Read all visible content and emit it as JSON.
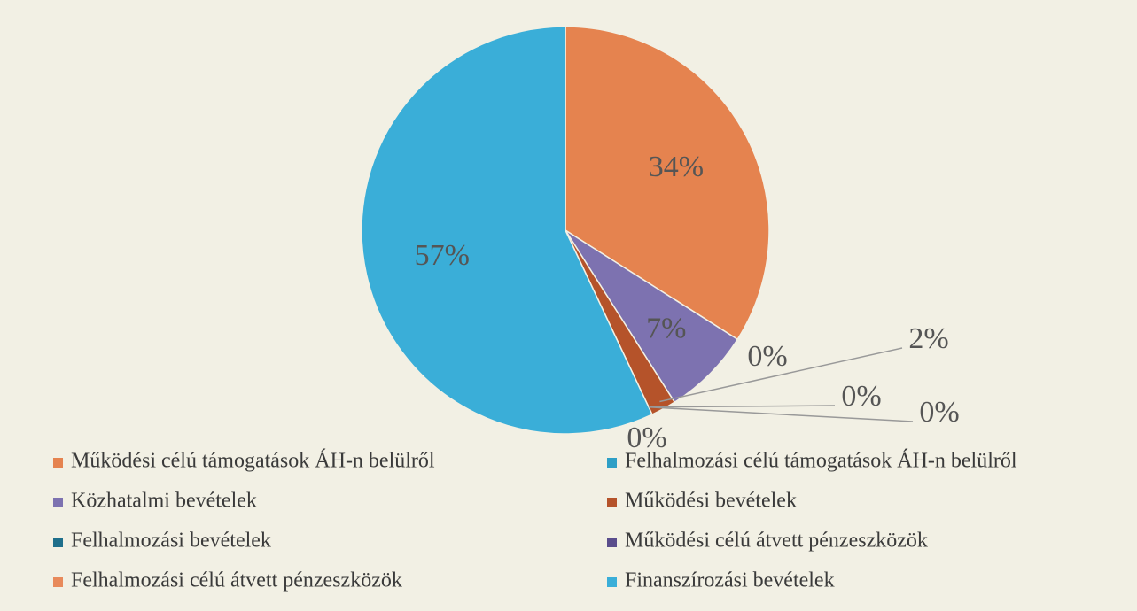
{
  "chart_data": {
    "type": "pie",
    "categories": [
      "Működési célú támogatások ÁH-n belülről",
      "Felhalmozási célú támogatások ÁH-n belülről",
      "Közhatalmi bevételek",
      "Működési bevételek",
      "Felhalmozási bevételek",
      "Működési célú átvett pénzeszközök",
      "Felhalmozási célú átvett pénzeszközök",
      "Finanszírozási bevételek"
    ],
    "values": [
      34,
      0,
      7,
      2,
      0,
      0,
      0,
      57
    ],
    "value_labels": [
      "34%",
      "0%",
      "7%",
      "2%",
      "0%",
      "0%",
      "0%",
      "57%"
    ],
    "colors": [
      "#e5834f",
      "#2e9fc6",
      "#7d72b0",
      "#b5532a",
      "#1f6f8b",
      "#5a4d8c",
      "#e88a5b",
      "#3aaed8"
    ]
  }
}
